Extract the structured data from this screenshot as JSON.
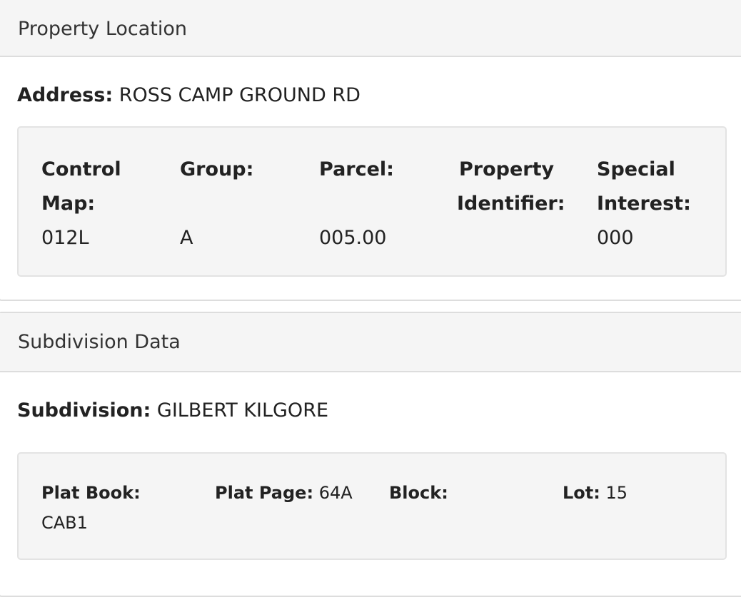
{
  "property_location": {
    "title": "Property Location",
    "address_label": "Address:",
    "address_value": "ROSS CAMP GROUND RD",
    "fields": [
      {
        "label_line1": "Control",
        "label_line2": "Map:",
        "value": "012L"
      },
      {
        "label_line1": "Group:",
        "label_line2": "",
        "value": "A"
      },
      {
        "label_line1": "Parcel:",
        "label_line2": "",
        "value": "005.00"
      },
      {
        "label_line1": "Property",
        "label_line2": "Identifier:",
        "value": ""
      },
      {
        "label_line1": "Special",
        "label_line2": "Interest:",
        "value": "000"
      }
    ]
  },
  "subdivision_data": {
    "title": "Subdivision Data",
    "subdivision_label": "Subdivision:",
    "subdivision_value": "GILBERT KILGORE",
    "fields": [
      {
        "label": "Plat Book:",
        "value": "CAB1"
      },
      {
        "label": "Plat Page:",
        "value": "64A"
      },
      {
        "label": "Block:",
        "value": ""
      },
      {
        "label": "Lot:",
        "value": "15"
      }
    ]
  }
}
